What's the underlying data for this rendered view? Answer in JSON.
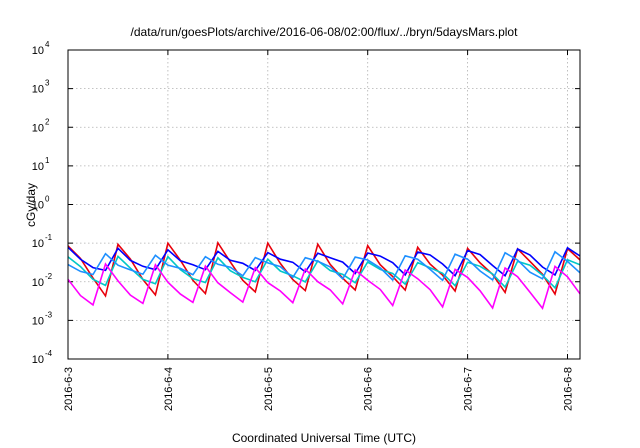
{
  "chart_data": {
    "type": "line",
    "title": "/data/run/goesPlots/archive/2016-06-08/02:00/flux/../bryn/5daysMars.plot",
    "xlabel": "Coordinated Universal Time (UTC)",
    "ylabel": "cGy/day",
    "y_scale": "log",
    "ylim": [
      0.0001,
      10000
    ],
    "xlim": [
      "2016-06-03 00:00",
      "2016-06-08 03:00"
    ],
    "grid": true,
    "legend": "none",
    "y_ticks": [
      {
        "base": "10",
        "exp": "-4"
      },
      {
        "base": "10",
        "exp": "-3"
      },
      {
        "base": "10",
        "exp": "-2"
      },
      {
        "base": "10",
        "exp": "-1"
      },
      {
        "base": "10",
        "exp": "0"
      },
      {
        "base": "10",
        "exp": "1"
      },
      {
        "base": "10",
        "exp": "2"
      },
      {
        "base": "10",
        "exp": "3"
      },
      {
        "base": "10",
        "exp": "4"
      }
    ],
    "x_ticks": [
      "2016-6-3",
      "2016-6-4",
      "2016-6-5",
      "2016-6-6",
      "2016-6-7",
      "2016-6-8"
    ],
    "sample_interval_hours": 3,
    "series": [
      {
        "color": "#e8000b",
        "peak": 0.085,
        "trough": 0.002
      },
      {
        "color": "#00c8c8",
        "peak": 0.045,
        "trough": 0.006
      },
      {
        "color": "#0000ff",
        "peak": 0.09,
        "trough": 0.015
      },
      {
        "color": "#ff00ff",
        "peak": 0.025,
        "trough": 0.0012
      },
      {
        "color": "#1e90ff",
        "peak": 0.06,
        "trough": 0.01
      }
    ]
  }
}
